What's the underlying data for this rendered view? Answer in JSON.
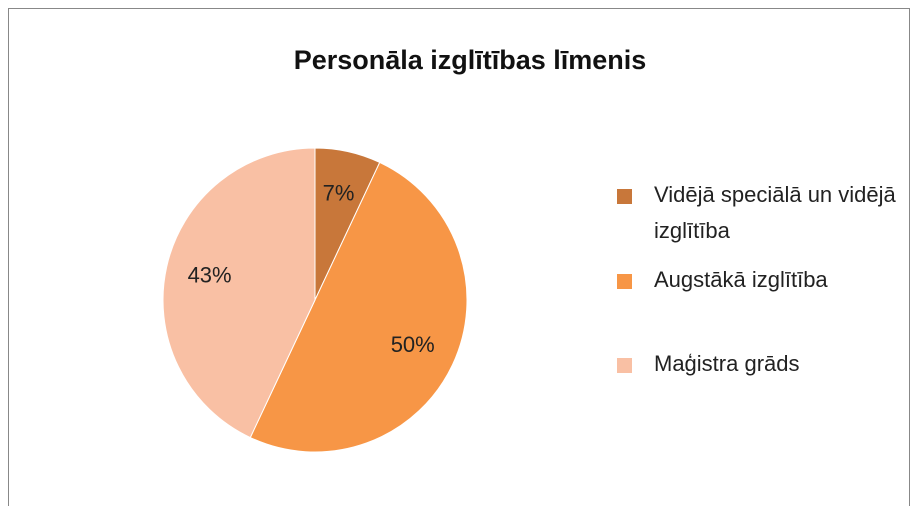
{
  "chart_data": {
    "type": "pie",
    "title": "Personāla izglītības līmenis",
    "categories": [
      "Vidējā speciālā un vidējā izglītība",
      "Augstākā izglītība",
      "Maģistra grāds"
    ],
    "values": [
      7,
      50,
      43
    ],
    "value_labels": [
      "7%",
      "50%",
      "43%"
    ],
    "colors": [
      "#c8773a",
      "#f79646",
      "#f9c0a4"
    ],
    "legend": "right"
  }
}
